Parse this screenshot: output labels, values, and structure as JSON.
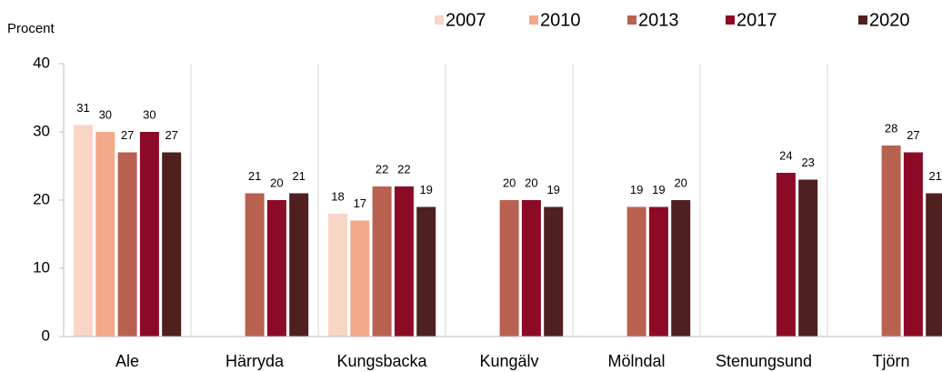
{
  "chart_data": {
    "type": "bar",
    "y_label": "Procent",
    "categories": [
      "Ale",
      "Härryda",
      "Kungsbacka",
      "Kungälv",
      "Mölndal",
      "Stenungsund",
      "Tjörn"
    ],
    "series": [
      {
        "name": "2007",
        "color": "#f9d5c6",
        "values": [
          31,
          null,
          18,
          null,
          null,
          null,
          null
        ]
      },
      {
        "name": "2010",
        "color": "#f2a98a",
        "values": [
          30,
          null,
          17,
          null,
          null,
          null,
          null
        ]
      },
      {
        "name": "2013",
        "color": "#b86150",
        "values": [
          27,
          21,
          22,
          20,
          19,
          null,
          28
        ]
      },
      {
        "name": "2017",
        "color": "#8c0a25",
        "values": [
          30,
          20,
          22,
          20,
          19,
          24,
          27
        ]
      },
      {
        "name": "2020",
        "color": "#4f2020",
        "values": [
          27,
          21,
          19,
          19,
          20,
          23,
          21
        ]
      }
    ],
    "ylim": [
      0,
      40
    ],
    "yticks": [
      0,
      10,
      20,
      30,
      40
    ],
    "legend": "top"
  }
}
